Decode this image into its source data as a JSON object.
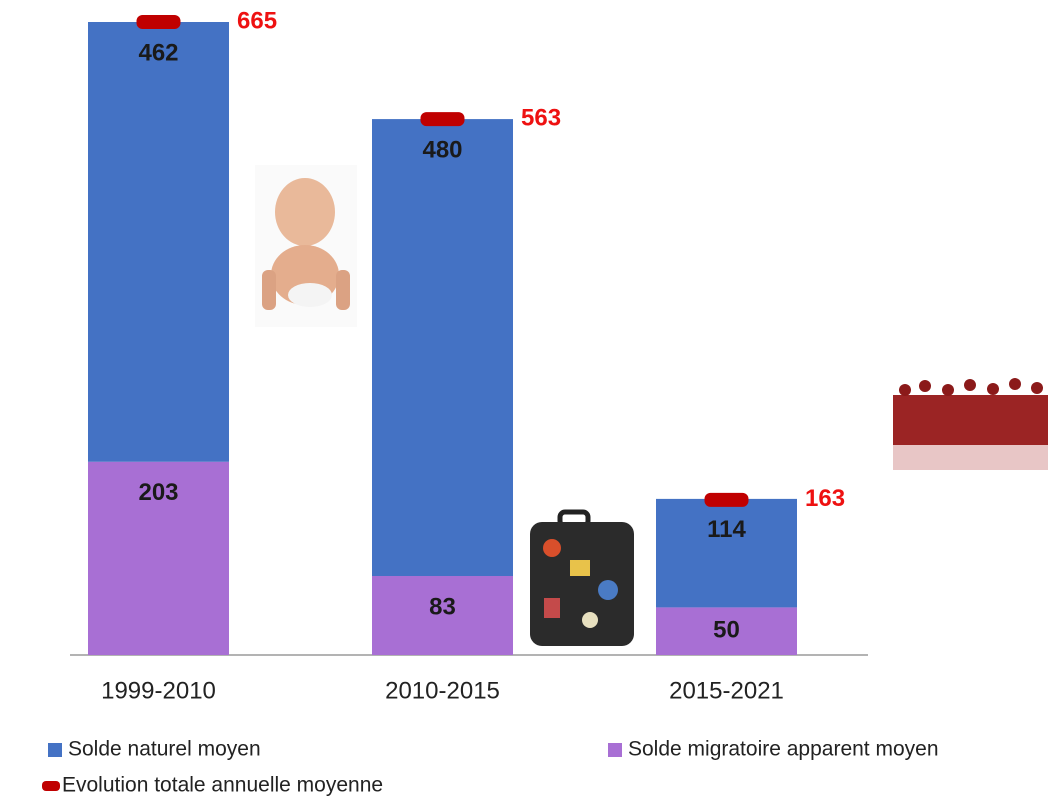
{
  "chart_data": {
    "type": "bar",
    "categories": [
      "1999-2010",
      "2010-2015",
      "2015-2021"
    ],
    "series": [
      {
        "name": "Solde migratoire apparent moyen",
        "color": "#a86fd4",
        "values": [
          203,
          83,
          50
        ],
        "type": "bar"
      },
      {
        "name": "Solde naturel moyen",
        "color": "#4472c4",
        "values": [
          462,
          480,
          114
        ],
        "type": "bar"
      },
      {
        "name": "Evolution totale annuelle moyenne",
        "color": "#c00000",
        "values": [
          665,
          563,
          163
        ],
        "type": "marker"
      }
    ],
    "stacked": true
  }
}
